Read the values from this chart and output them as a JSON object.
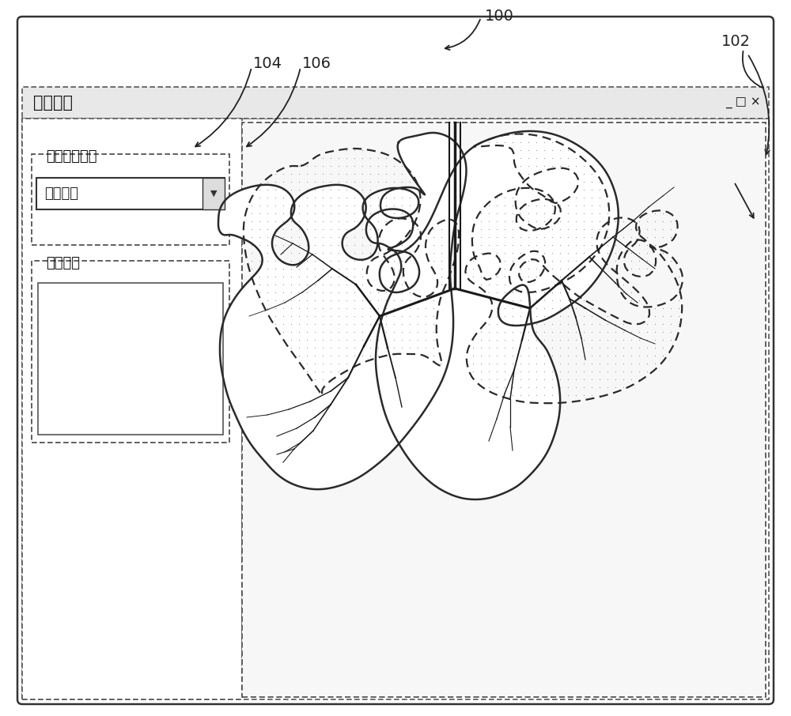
{
  "bg_color": "#ffffff",
  "border_color": "#333333",
  "dot_border_color": "#555555",
  "title_bar_text": "患者编号",
  "title_bar_controls": "_ □ ×",
  "label_100": "100",
  "label_102": "102",
  "label_104": "104",
  "label_106": "106",
  "panel_left_label1": "选择设备类型",
  "panel_left_dropdown": "选择设备",
  "panel_left_label2": "设备图示",
  "lung_outline_color": "#2a2a2a",
  "bronchi_color": "#1a1a1a",
  "dot_color": "#777777",
  "lung_upper_fill": "dotted",
  "lung_lower_fill": "white",
  "trachea_color": "#222222"
}
